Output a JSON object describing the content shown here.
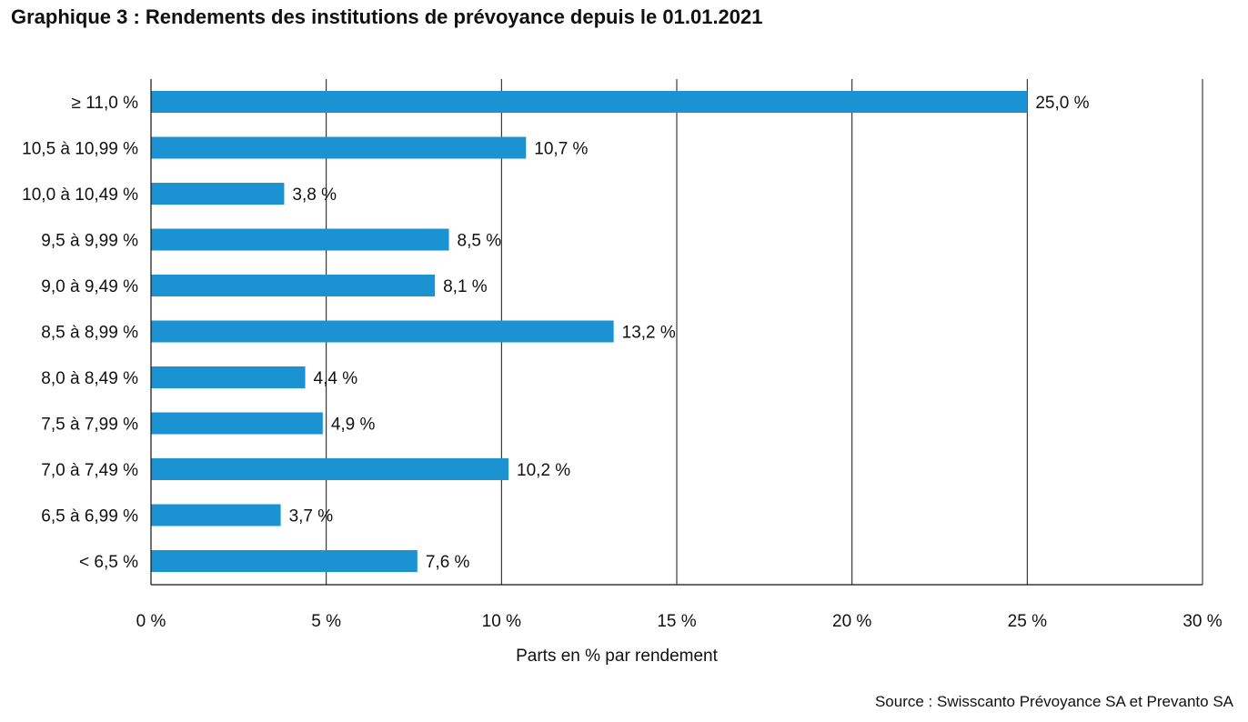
{
  "chart_data": {
    "type": "bar",
    "orientation": "horizontal",
    "title": "Graphique 3 : Rendements des institutions de prévoyance depuis le 01.01.2021",
    "xlabel": "Parts en % par rendement",
    "ylabel": "",
    "source": "Source : Swisscanto Prévoyance SA et Prevanto SA",
    "categories": [
      "≥ 11,0 %",
      "10,5 à 10,99 %",
      "10,0 à 10,49 %",
      "9,5 à 9,99 %",
      "9,0 à 9,49 %",
      "8,5 à 8,99 %",
      "8,0 à 8,49 %",
      "7,5 à 7,99 %",
      "7,0 à 7,49 %",
      "6,5 à 6,99 %",
      "< 6,5 %"
    ],
    "values": [
      25.0,
      10.7,
      3.8,
      8.5,
      8.1,
      13.2,
      4.4,
      4.9,
      10.2,
      3.7,
      7.6
    ],
    "value_labels": [
      "25,0 %",
      "10,7 %",
      "3,8 %",
      "8,5 %",
      "8,1 %",
      "13,2 %",
      "4,4 %",
      "4,9 %",
      "10,2 %",
      "3,7 %",
      "7,6 %"
    ],
    "xlim": [
      0,
      30
    ],
    "x_ticks": [
      0,
      5,
      10,
      15,
      20,
      25,
      30
    ],
    "x_tick_labels": [
      "0 %",
      "5 %",
      "10 %",
      "15 %",
      "20 %",
      "25 %",
      "30 %"
    ],
    "grid": "vertical",
    "legend": "none",
    "bar_color": "#1b93d3"
  }
}
